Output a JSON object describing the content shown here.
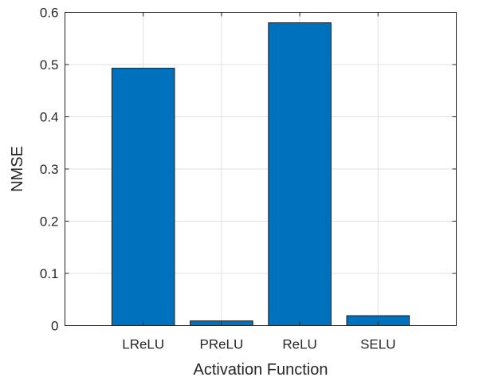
{
  "chart_data": {
    "type": "bar",
    "categories": [
      "LReLU",
      "PReLU",
      "ReLU",
      "SELU"
    ],
    "values": [
      0.493,
      0.009,
      0.58,
      0.019
    ],
    "xlabel": "Activation Function",
    "ylabel": "NMSE",
    "ylim": [
      0,
      0.6
    ],
    "yticks": [
      0,
      0.1,
      0.2,
      0.3,
      0.4,
      0.5,
      0.6
    ],
    "ytick_labels": [
      "0",
      "0.1",
      "0.2",
      "0.3",
      "0.4",
      "0.5",
      "0.6"
    ],
    "bar_color": "#0072BD",
    "grid": true
  }
}
